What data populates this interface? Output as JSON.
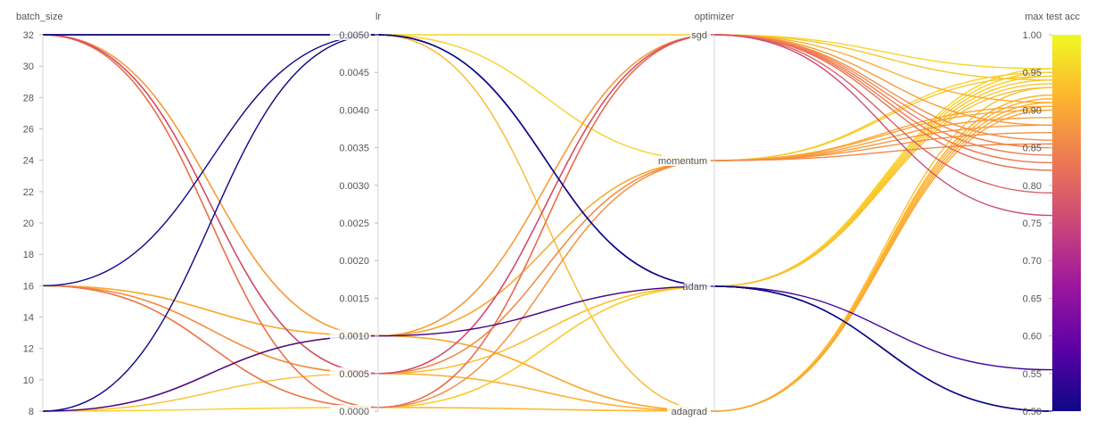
{
  "chart_data": {
    "type": "parallel-coordinates",
    "axes": [
      {
        "name": "batch_size",
        "label": "batch_size",
        "kind": "numeric",
        "range": [
          8,
          32
        ],
        "ticks": [
          8,
          10,
          12,
          14,
          16,
          18,
          20,
          22,
          24,
          26,
          28,
          30,
          32
        ],
        "tick_labels": [
          "8",
          "10",
          "12",
          "14",
          "16",
          "18",
          "20",
          "22",
          "24",
          "26",
          "28",
          "30",
          "32"
        ]
      },
      {
        "name": "lr",
        "label": "lr",
        "kind": "numeric",
        "range": [
          0,
          0.005
        ],
        "ticks": [
          0,
          0.0005,
          0.001,
          0.0015,
          0.002,
          0.0025,
          0.003,
          0.0035,
          0.004,
          0.0045,
          0.005
        ],
        "tick_labels": [
          "0.0000",
          "0.0005",
          "0.0010",
          "0.0015",
          "0.0020",
          "0.0025",
          "0.0030",
          "0.0035",
          "0.0040",
          "0.0045",
          "0.0050"
        ]
      },
      {
        "name": "optimizer",
        "label": "optimizer",
        "kind": "categorical",
        "categories": [
          "adagrad",
          "adam",
          "momentum",
          "sgd"
        ]
      },
      {
        "name": "max_test_acc",
        "label": "max test acc",
        "kind": "numeric",
        "range": [
          0.5,
          1.0
        ],
        "ticks": [
          0.5,
          0.55,
          0.6,
          0.65,
          0.7,
          0.75,
          0.8,
          0.85,
          0.9,
          0.95,
          1.0
        ],
        "tick_labels": [
          "0.50",
          "0.55",
          "0.60",
          "0.65",
          "0.70",
          "0.75",
          "0.80",
          "0.85",
          "0.90",
          "0.95",
          "1.00"
        ]
      }
    ],
    "colorscale": [
      "#0d0887",
      "#5c01a6",
      "#9c179e",
      "#cc4778",
      "#ed7953",
      "#fdb42f",
      "#f0f921"
    ],
    "colorbar": {
      "range": [
        0.5,
        1.0
      ]
    },
    "runs": [
      {
        "batch_size": 32,
        "lr": 0.005,
        "optimizer": "adam",
        "max_test_acc": 0.5
      },
      {
        "batch_size": 32,
        "lr": 0.005,
        "optimizer": "adam",
        "max_test_acc": 0.5
      },
      {
        "batch_size": 16,
        "lr": 0.005,
        "optimizer": "adam",
        "max_test_acc": 0.5
      },
      {
        "batch_size": 8,
        "lr": 0.005,
        "optimizer": "adam",
        "max_test_acc": 0.5
      },
      {
        "batch_size": 8,
        "lr": 0.001,
        "optimizer": "adam",
        "max_test_acc": 0.555
      },
      {
        "batch_size": 32,
        "lr": 0.0005,
        "optimizer": "sgd",
        "max_test_acc": 0.76
      },
      {
        "batch_size": 32,
        "lr": 0.0005,
        "optimizer": "sgd",
        "max_test_acc": 0.79
      },
      {
        "batch_size": 32,
        "lr": 5e-05,
        "optimizer": "sgd",
        "max_test_acc": 0.82
      },
      {
        "batch_size": 16,
        "lr": 5e-05,
        "optimizer": "sgd",
        "max_test_acc": 0.83
      },
      {
        "batch_size": 16,
        "lr": 5e-05,
        "optimizer": "sgd",
        "max_test_acc": 0.84
      },
      {
        "batch_size": 32,
        "lr": 5e-05,
        "optimizer": "sgd",
        "max_test_acc": 0.85
      },
      {
        "batch_size": 16,
        "lr": 0.0005,
        "optimizer": "sgd",
        "max_test_acc": 0.86
      },
      {
        "batch_size": 32,
        "lr": 0.0005,
        "optimizer": "momentum",
        "max_test_acc": 0.855
      },
      {
        "batch_size": 32,
        "lr": 5e-05,
        "optimizer": "momentum",
        "max_test_acc": 0.87
      },
      {
        "batch_size": 16,
        "lr": 5e-05,
        "optimizer": "momentum",
        "max_test_acc": 0.88
      },
      {
        "batch_size": 16,
        "lr": 0.0005,
        "optimizer": "momentum",
        "max_test_acc": 0.89
      },
      {
        "batch_size": 8,
        "lr": 0.001,
        "optimizer": "momentum",
        "max_test_acc": 0.9
      },
      {
        "batch_size": 32,
        "lr": 0.001,
        "optimizer": "sgd",
        "max_test_acc": 0.88
      },
      {
        "batch_size": 32,
        "lr": 0.001,
        "optimizer": "momentum",
        "max_test_acc": 0.905
      },
      {
        "batch_size": 16,
        "lr": 0.001,
        "optimizer": "sgd",
        "max_test_acc": 0.91
      },
      {
        "batch_size": 16,
        "lr": 0.001,
        "optimizer": "adagrad",
        "max_test_acc": 0.9
      },
      {
        "batch_size": 32,
        "lr": 0.001,
        "optimizer": "adagrad",
        "max_test_acc": 0.905
      },
      {
        "batch_size": 8,
        "lr": 0.001,
        "optimizer": "adagrad",
        "max_test_acc": 0.92
      },
      {
        "batch_size": 16,
        "lr": 0.0005,
        "optimizer": "adagrad",
        "max_test_acc": 0.91
      },
      {
        "batch_size": 32,
        "lr": 0.0005,
        "optimizer": "adagrad",
        "max_test_acc": 0.915
      },
      {
        "batch_size": 16,
        "lr": 5e-05,
        "optimizer": "adagrad",
        "max_test_acc": 0.92
      },
      {
        "batch_size": 32,
        "lr": 5e-05,
        "optimizer": "adagrad",
        "max_test_acc": 0.93
      },
      {
        "batch_size": 32,
        "lr": 0.005,
        "optimizer": "adagrad",
        "max_test_acc": 0.92
      },
      {
        "batch_size": 8,
        "lr": 0.0005,
        "optimizer": "adam",
        "max_test_acc": 0.93
      },
      {
        "batch_size": 16,
        "lr": 0.0005,
        "optimizer": "adam",
        "max_test_acc": 0.935
      },
      {
        "batch_size": 8,
        "lr": 0.001,
        "optimizer": "sgd",
        "max_test_acc": 0.94
      },
      {
        "batch_size": 16,
        "lr": 0.001,
        "optimizer": "momentum",
        "max_test_acc": 0.945
      },
      {
        "batch_size": 32,
        "lr": 0.005,
        "optimizer": "momentum",
        "max_test_acc": 0.95
      },
      {
        "batch_size": 32,
        "lr": 0.005,
        "optimizer": "sgd",
        "max_test_acc": 0.955
      },
      {
        "batch_size": 16,
        "lr": 0.001,
        "optimizer": "adam",
        "max_test_acc": 0.94
      },
      {
        "batch_size": 8,
        "lr": 5e-05,
        "optimizer": "adam",
        "max_test_acc": 0.95
      },
      {
        "batch_size": 32,
        "lr": 5e-05,
        "optimizer": "adam",
        "max_test_acc": 0.945
      },
      {
        "batch_size": 16,
        "lr": 5e-05,
        "optimizer": "adam",
        "max_test_acc": 0.955
      }
    ]
  }
}
